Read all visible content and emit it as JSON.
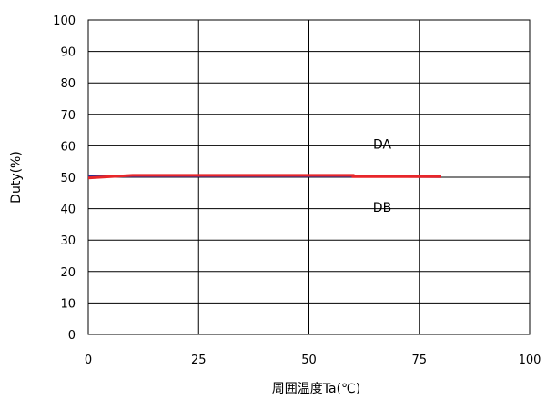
{
  "chart_data": {
    "type": "line",
    "title": "",
    "xlabel": "周囲温度Ta(℃)",
    "ylabel": "Duty(%)",
    "xlim": [
      0,
      100
    ],
    "ylim": [
      0,
      100
    ],
    "xticks": [
      "0",
      "25",
      "50",
      "75",
      "100"
    ],
    "yticks": [
      "0",
      "10",
      "20",
      "30",
      "40",
      "50",
      "60",
      "70",
      "80",
      "90",
      "100"
    ],
    "grid": true,
    "series": [
      {
        "name": "DA",
        "color": "#e8262a",
        "points": [
          [
            0,
            49.8
          ],
          [
            10,
            50.6
          ],
          [
            60,
            50.6
          ],
          [
            60,
            50.2
          ],
          [
            80,
            50.2
          ]
        ]
      },
      {
        "name": "DB",
        "color": "#2b2f8f",
        "points": [
          [
            0,
            50.4
          ],
          [
            60,
            50.4
          ],
          [
            80,
            50.2
          ]
        ]
      }
    ]
  }
}
